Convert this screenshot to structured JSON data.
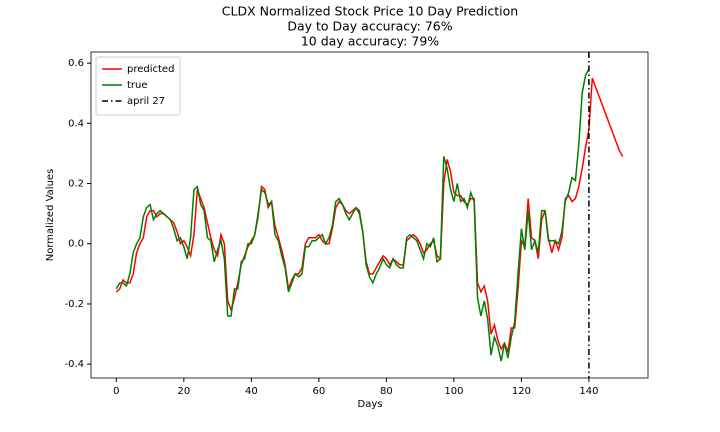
{
  "chart_data": {
    "type": "line",
    "title": [
      "CLDX Normalized Stock Price 10 Day Prediction",
      "Day to Day accuracy: 76%",
      "10 day accuracy: 79%"
    ],
    "xlabel": "Days",
    "ylabel": "Normalized Values",
    "x": [
      0,
      1,
      2,
      3,
      4,
      5,
      6,
      7,
      8,
      9,
      10,
      11,
      12,
      13,
      14,
      15,
      16,
      17,
      18,
      19,
      20,
      21,
      22,
      23,
      24,
      25,
      26,
      27,
      28,
      29,
      30,
      31,
      32,
      33,
      34,
      35,
      36,
      37,
      38,
      39,
      40,
      41,
      42,
      43,
      44,
      45,
      46,
      47,
      48,
      49,
      50,
      51,
      52,
      53,
      54,
      55,
      56,
      57,
      58,
      59,
      60,
      61,
      62,
      63,
      64,
      65,
      66,
      67,
      68,
      69,
      70,
      71,
      72,
      73,
      74,
      75,
      76,
      77,
      78,
      79,
      80,
      81,
      82,
      83,
      84,
      85,
      86,
      87,
      88,
      89,
      90,
      91,
      92,
      93,
      94,
      95,
      96,
      97,
      98,
      99,
      100,
      101,
      102,
      103,
      104,
      105,
      106,
      107,
      108,
      109,
      110,
      111,
      112,
      113,
      114,
      115,
      116,
      117,
      118,
      119,
      120,
      121,
      122,
      123,
      124,
      125,
      126,
      127,
      128,
      129,
      130,
      131,
      132,
      133,
      134,
      135,
      136,
      137,
      138,
      139,
      140,
      141,
      142,
      143,
      144,
      145,
      146,
      147,
      148,
      149,
      150
    ],
    "series": [
      {
        "name": "predicted",
        "color": "#ff0000",
        "values": [
          -0.16,
          -0.15,
          -0.12,
          -0.13,
          -0.13,
          -0.1,
          -0.03,
          0.0,
          0.02,
          0.09,
          0.11,
          0.11,
          0.09,
          0.1,
          0.1,
          0.09,
          0.08,
          0.07,
          0.04,
          0.0,
          0.01,
          -0.01,
          -0.04,
          0.03,
          0.18,
          0.15,
          0.12,
          0.07,
          0.02,
          -0.02,
          -0.04,
          0.03,
          0.0,
          -0.19,
          -0.22,
          -0.18,
          -0.13,
          -0.07,
          -0.04,
          -0.01,
          0.01,
          0.03,
          0.09,
          0.19,
          0.18,
          0.12,
          0.14,
          0.06,
          0.02,
          -0.02,
          -0.07,
          -0.15,
          -0.12,
          -0.1,
          -0.1,
          -0.08,
          0.0,
          0.02,
          0.02,
          0.02,
          0.03,
          0.01,
          0.0,
          0.0,
          0.05,
          0.12,
          0.14,
          0.13,
          0.11,
          0.1,
          0.11,
          0.12,
          0.1,
          0.04,
          -0.06,
          -0.1,
          -0.1,
          -0.08,
          -0.06,
          -0.04,
          -0.05,
          -0.07,
          -0.05,
          -0.06,
          -0.07,
          -0.07,
          0.01,
          0.02,
          0.03,
          0.02,
          0.0,
          -0.03,
          -0.02,
          0.0,
          0.01,
          -0.04,
          -0.05,
          0.2,
          0.28,
          0.24,
          0.17,
          0.16,
          0.16,
          0.14,
          0.13,
          0.15,
          0.15,
          -0.13,
          -0.16,
          -0.14,
          -0.19,
          -0.3,
          -0.27,
          -0.32,
          -0.35,
          -0.33,
          -0.36,
          -0.28,
          -0.28,
          -0.15,
          0.01,
          -0.01,
          0.15,
          0.02,
          0.01,
          -0.05,
          0.08,
          0.11,
          0.02,
          -0.03,
          0.01,
          -0.02,
          0.02,
          0.15,
          0.16,
          0.14,
          0.15,
          0.19,
          0.25,
          0.32,
          0.38,
          0.55,
          0.52,
          0.49,
          0.46,
          0.43,
          0.4,
          0.37,
          0.34,
          0.31,
          0.29
        ]
      },
      {
        "name": "true",
        "color": "#008000",
        "values": [
          -0.15,
          -0.13,
          -0.13,
          -0.14,
          -0.1,
          -0.03,
          0.0,
          0.02,
          0.09,
          0.12,
          0.13,
          0.08,
          0.1,
          0.11,
          0.1,
          0.09,
          0.08,
          0.05,
          0.01,
          0.02,
          -0.01,
          -0.05,
          0.02,
          0.18,
          0.19,
          0.13,
          0.11,
          0.02,
          0.01,
          -0.06,
          -0.02,
          0.01,
          -0.05,
          -0.24,
          -0.24,
          -0.15,
          -0.15,
          -0.06,
          -0.05,
          0.0,
          0.0,
          0.03,
          0.1,
          0.18,
          0.17,
          0.13,
          0.14,
          0.03,
          0.01,
          -0.04,
          -0.08,
          -0.16,
          -0.13,
          -0.1,
          -0.11,
          -0.1,
          -0.01,
          -0.01,
          0.01,
          0.01,
          0.02,
          0.03,
          0.0,
          0.02,
          0.06,
          0.14,
          0.15,
          0.13,
          0.1,
          0.08,
          0.1,
          0.12,
          0.11,
          0.04,
          -0.07,
          -0.11,
          -0.13,
          -0.1,
          -0.08,
          -0.05,
          -0.07,
          -0.08,
          -0.05,
          -0.07,
          -0.08,
          -0.08,
          0.02,
          0.03,
          0.02,
          0.01,
          -0.02,
          -0.05,
          0.0,
          -0.01,
          0.02,
          -0.06,
          -0.05,
          0.29,
          0.25,
          0.18,
          0.14,
          0.2,
          0.14,
          0.15,
          0.12,
          0.17,
          0.14,
          -0.18,
          -0.24,
          -0.19,
          -0.25,
          -0.37,
          -0.31,
          -0.34,
          -0.39,
          -0.33,
          -0.38,
          -0.31,
          -0.26,
          -0.1,
          0.05,
          -0.02,
          0.11,
          -0.02,
          0.01,
          -0.03,
          0.11,
          0.11,
          0.01,
          0.01,
          0.01,
          0.0,
          0.04,
          0.14,
          0.17,
          0.22,
          0.21,
          0.33,
          0.5,
          0.56,
          0.58,
          null,
          null,
          null,
          null,
          null,
          null,
          null,
          null,
          null,
          null
        ]
      }
    ],
    "vline": {
      "name": "april 27",
      "x": 140,
      "color": "#000000"
    },
    "xlim": [
      -7.5,
      157.5
    ],
    "ylim": [
      -0.446,
      0.637
    ],
    "xticks": [
      0,
      20,
      40,
      60,
      80,
      100,
      120,
      140
    ],
    "yticks": [
      -0.4,
      -0.2,
      {
        "value": 0,
        "label": "0.0"
      },
      0.2,
      0.4,
      0.6
    ],
    "legend": "upper left",
    "grid": false
  }
}
